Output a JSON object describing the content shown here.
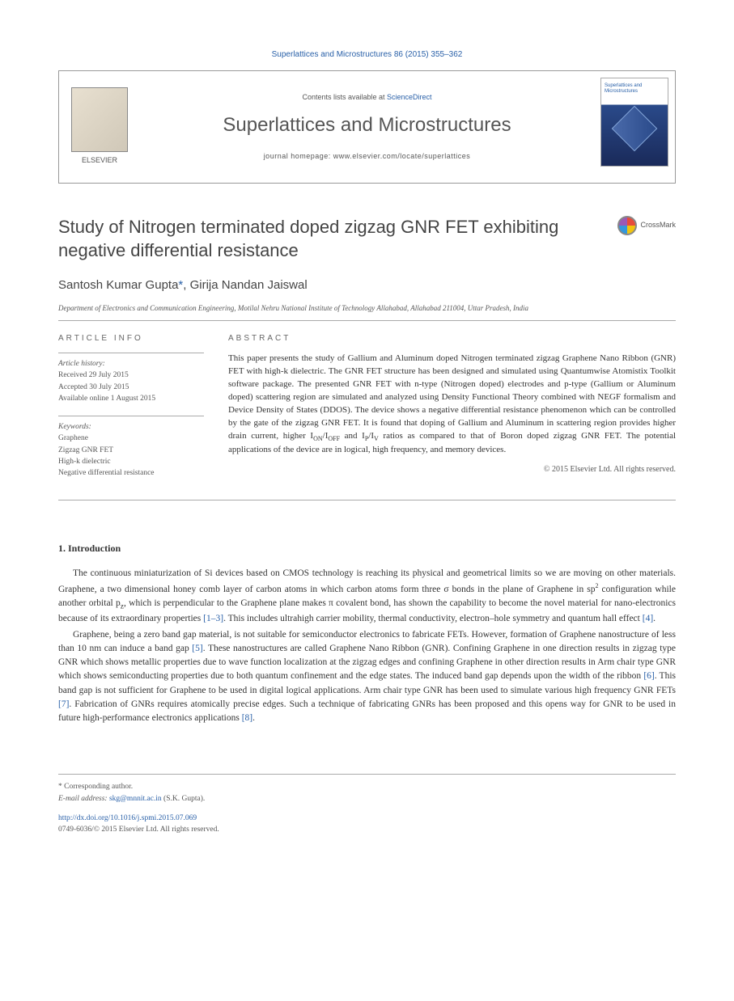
{
  "header": {
    "citation": "Superlattices and Microstructures 86 (2015) 355–362"
  },
  "masthead": {
    "contents_prefix": "Contents lists available at ",
    "contents_link": "ScienceDirect",
    "journal_name": "Superlattices and Microstructures",
    "homepage_prefix": "journal homepage: ",
    "homepage_url": "www.elsevier.com/locate/superlattices",
    "publisher": "ELSEVIER",
    "cover_title": "Superlattices and Microstructures"
  },
  "article": {
    "title": "Study of Nitrogen terminated doped zigzag GNR FET exhibiting negative differential resistance",
    "crossmark": "CrossMark",
    "authors_html": "Santosh Kumar Gupta",
    "author_corr_link": "*",
    "author_sep": ", ",
    "author2": "Girija Nandan Jaiswal",
    "affiliation": "Department of Electronics and Communication Engineering, Motilal Nehru National Institute of Technology Allahabad, Allahabad 211004, Uttar Pradesh, India"
  },
  "info": {
    "heading": "ARTICLE INFO",
    "history_label": "Article history:",
    "received": "Received 29 July 2015",
    "accepted": "Accepted 30 July 2015",
    "online": "Available online 1 August 2015",
    "keywords_label": "Keywords:",
    "keywords": [
      "Graphene",
      "Zigzag GNR FET",
      "High-k dielectric",
      "Negative differential resistance"
    ]
  },
  "abstract": {
    "heading": "ABSTRACT",
    "text": "This paper presents the study of Gallium and Aluminum doped Nitrogen terminated zigzag Graphene Nano Ribbon (GNR) FET with high-k dielectric. The GNR FET structure has been designed and simulated using Quantumwise Atomistix Toolkit software package. The presented GNR FET with n-type (Nitrogen doped) electrodes and p-type (Gallium or Aluminum doped) scattering region are simulated and analyzed using Density Functional Theory combined with NEGF formalism and Device Density of States (DDOS). The device shows a negative differential resistance phenomenon which can be controlled by the gate of the zigzag GNR FET. It is found that doping of Gallium and Aluminum in scattering region provides higher drain current, higher I",
    "sub1": "ON",
    "mid1": "/I",
    "sub2": "OFF",
    "mid2": " and I",
    "sub3": "P",
    "mid3": "/I",
    "sub4": "V",
    "text2": " ratios as compared to that of Boron doped zigzag GNR FET. The potential applications of the device are in logical, high frequency, and memory devices.",
    "copyright": "© 2015 Elsevier Ltd. All rights reserved."
  },
  "section1": {
    "heading": "1. Introduction",
    "para1_a": "The continuous miniaturization of Si devices based on CMOS technology is reaching its physical and geometrical limits so we are moving on other materials. Graphene, a two dimensional honey comb layer of carbon atoms in which carbon atoms form three σ bonds in the plane of Graphene in sp",
    "para1_sup": "2",
    "para1_b": " configuration while another orbital p",
    "para1_sub": "z",
    "para1_c": ", which is perpendicular to the Graphene plane makes π covalent bond, has shown the capability to become the novel material for nano-electronics because of its extraordinary properties ",
    "ref1": "[1–3]",
    "para1_d": ". This includes ultrahigh carrier mobility, thermal conductivity, electron–hole symmetry and quantum hall effect ",
    "ref2": "[4]",
    "para1_e": ".",
    "para2_a": "Graphene, being a zero band gap material, is not suitable for semiconductor electronics to fabricate FETs. However, formation of Graphene nanostructure of less than 10 nm can induce a band gap ",
    "ref3": "[5]",
    "para2_b": ". These nanostructures are called Graphene Nano Ribbon (GNR). Confining Graphene in one direction results in zigzag type GNR which shows metallic properties due to wave function localization at the zigzag edges and confining Graphene in other direction results in Arm chair type GNR which shows semiconducting properties due to both quantum confinement and the edge states. The induced band gap depends upon the width of the ribbon ",
    "ref4": "[6]",
    "para2_c": ". This band gap is not sufficient for Graphene to be used in digital logical applications. Arm chair type GNR has been used to simulate various high frequency GNR FETs ",
    "ref5": "[7]",
    "para2_d": ". Fabrication of GNRs requires atomically precise edges. Such a technique of fabricating GNRs has been proposed and this opens way for GNR to be used in future high-performance electronics applications ",
    "ref6": "[8]",
    "para2_e": "."
  },
  "footer": {
    "corr_label": "* Corresponding author.",
    "email_label": "E-mail address: ",
    "email": "skg@mnnit.ac.in",
    "email_suffix": " (S.K. Gupta).",
    "doi": "http://dx.doi.org/10.1016/j.spmi.2015.07.069",
    "issn_copyright": "0749-6036/© 2015 Elsevier Ltd. All rights reserved."
  },
  "colors": {
    "link": "#2960a8",
    "text": "#333333",
    "muted": "#555555",
    "border": "#aaaaaa"
  }
}
